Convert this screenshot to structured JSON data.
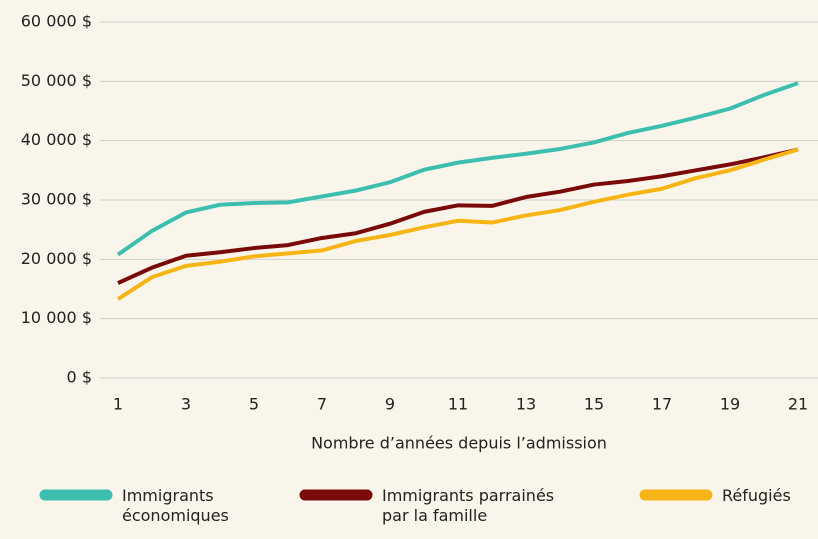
{
  "chart_data": {
    "type": "line",
    "x_label": "Nombre d’années depuis l’admission",
    "x": [
      1,
      2,
      3,
      4,
      5,
      6,
      7,
      8,
      9,
      10,
      11,
      12,
      13,
      14,
      15,
      16,
      17,
      18,
      19,
      20,
      21
    ],
    "xlim": [
      1,
      21
    ],
    "xticks": [
      1,
      3,
      5,
      7,
      9,
      11,
      13,
      15,
      17,
      19,
      21
    ],
    "ylim": [
      0,
      60000
    ],
    "yticks": [
      {
        "value": 0,
        "label": "0 $"
      },
      {
        "value": 10000,
        "label": "10 000 $"
      },
      {
        "value": 20000,
        "label": "20 000 $"
      },
      {
        "value": 30000,
        "label": "30 000 $"
      },
      {
        "value": 40000,
        "label": "40 000 $"
      },
      {
        "value": 50000,
        "label": "50 000 $"
      },
      {
        "value": 60000,
        "label": "60 000 $"
      }
    ],
    "grid": true,
    "legend": "bottom",
    "series": [
      {
        "name": "Immigrants économiques",
        "color": "#3dbfb0",
        "values": [
          20800,
          24800,
          27900,
          29200,
          29500,
          29600,
          30600,
          31600,
          33000,
          35100,
          36300,
          37100,
          37800,
          38600,
          39700,
          41300,
          42500,
          43900,
          45400,
          47700,
          49700
        ]
      },
      {
        "name": "Immigrants parrainés par la famille",
        "color": "#7a0a0a",
        "values": [
          16000,
          18600,
          20600,
          21200,
          21900,
          22400,
          23600,
          24400,
          26000,
          28000,
          29100,
          29000,
          30500,
          31400,
          32600,
          33200,
          34000,
          35000,
          36000,
          37200,
          38500
        ]
      },
      {
        "name": "Réfugiés",
        "color": "#f7b515",
        "values": [
          13300,
          17000,
          18900,
          19600,
          20500,
          21000,
          21500,
          23100,
          24100,
          25400,
          26500,
          26200,
          27400,
          28300,
          29700,
          30900,
          31900,
          33700,
          35000,
          36800,
          38500
        ]
      }
    ]
  }
}
